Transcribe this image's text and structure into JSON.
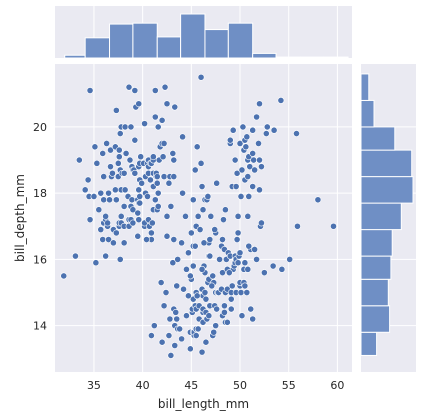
{
  "chart_data": {
    "type": "scatter",
    "kind": "jointplot",
    "xlabel": "bill_length_mm",
    "ylabel": "bill_depth_mm",
    "xlim": [
      31,
      61.5
    ],
    "ylim": [
      12.6,
      21.9
    ],
    "xticks": [
      35,
      40,
      45,
      50,
      55,
      60
    ],
    "yticks": [
      14,
      16,
      18,
      20
    ],
    "grid": true,
    "colors": {
      "marker": "#4c72b0",
      "bar": "#6f8fc5",
      "panel": "#eaeaf2",
      "grid": "#ffffff"
    },
    "points": [
      [
        31.9,
        15.5
      ],
      [
        33.1,
        16.1
      ],
      [
        33.5,
        19.0
      ],
      [
        34.1,
        18.1
      ],
      [
        34.4,
        18.4
      ],
      [
        34.5,
        17.9
      ],
      [
        34.6,
        21.1
      ],
      [
        34.6,
        17.2
      ],
      [
        35.0,
        17.9
      ],
      [
        35.1,
        19.4
      ],
      [
        35.2,
        15.9
      ],
      [
        35.3,
        18.9
      ],
      [
        35.5,
        17.5
      ],
      [
        35.7,
        16.9
      ],
      [
        35.7,
        18.0
      ],
      [
        35.9,
        16.6
      ],
      [
        35.9,
        19.2
      ],
      [
        36.0,
        17.1
      ],
      [
        36.0,
        17.8
      ],
      [
        36.0,
        18.5
      ],
      [
        36.2,
        16.1
      ],
      [
        36.2,
        17.2
      ],
      [
        36.2,
        17.3
      ],
      [
        36.3,
        19.5
      ],
      [
        36.4,
        17.0
      ],
      [
        36.4,
        17.1
      ],
      [
        36.5,
        16.6
      ],
      [
        36.5,
        18.0
      ],
      [
        36.6,
        17.8
      ],
      [
        36.7,
        18.8
      ],
      [
        36.7,
        19.3
      ],
      [
        36.8,
        18.5
      ],
      [
        36.9,
        18.6
      ],
      [
        37.0,
        16.5
      ],
      [
        37.0,
        16.9
      ],
      [
        37.2,
        18.1
      ],
      [
        37.2,
        19.4
      ],
      [
        37.3,
        16.8
      ],
      [
        37.3,
        17.8
      ],
      [
        37.3,
        20.5
      ],
      [
        37.5,
        18.5
      ],
      [
        37.5,
        18.9
      ],
      [
        37.6,
        17.0
      ],
      [
        37.6,
        17.1
      ],
      [
        37.6,
        19.1
      ],
      [
        37.6,
        19.3
      ],
      [
        37.7,
        16.0
      ],
      [
        37.7,
        18.7
      ],
      [
        37.7,
        19.8
      ],
      [
        37.8,
        17.1
      ],
      [
        37.8,
        17.3
      ],
      [
        37.8,
        18.1
      ],
      [
        37.8,
        20.0
      ],
      [
        37.9,
        18.6
      ],
      [
        38.1,
        16.5
      ],
      [
        38.1,
        17.0
      ],
      [
        38.1,
        17.6
      ],
      [
        38.1,
        18.6
      ],
      [
        38.2,
        18.1
      ],
      [
        38.2,
        20.0
      ],
      [
        38.3,
        19.2
      ],
      [
        38.5,
        17.9
      ],
      [
        38.6,
        17.0
      ],
      [
        38.6,
        17.2
      ],
      [
        38.6,
        21.2
      ],
      [
        38.7,
        19.0
      ],
      [
        38.8,
        17.2
      ],
      [
        38.8,
        17.6
      ],
      [
        38.8,
        20.0
      ],
      [
        38.9,
        17.8
      ],
      [
        38.9,
        18.8
      ],
      [
        39.0,
        17.1
      ],
      [
        39.0,
        17.5
      ],
      [
        39.0,
        18.7
      ],
      [
        39.1,
        18.7
      ],
      [
        39.2,
        18.6
      ],
      [
        39.2,
        19.6
      ],
      [
        39.2,
        21.1
      ],
      [
        39.3,
        20.6
      ],
      [
        39.5,
        16.7
      ],
      [
        39.5,
        17.4
      ],
      [
        39.5,
        17.8
      ],
      [
        39.6,
        17.2
      ],
      [
        39.6,
        17.7
      ],
      [
        39.6,
        18.1
      ],
      [
        39.6,
        18.8
      ],
      [
        39.6,
        20.7
      ],
      [
        39.7,
        17.7
      ],
      [
        39.7,
        17.9
      ],
      [
        39.7,
        18.4
      ],
      [
        39.7,
        18.9
      ],
      [
        39.8,
        19.1
      ],
      [
        39.9,
        18.3
      ],
      [
        40.1,
        18.9
      ],
      [
        40.2,
        17.0
      ],
      [
        40.2,
        17.1
      ],
      [
        40.2,
        20.1
      ],
      [
        40.3,
        18.0
      ],
      [
        40.3,
        18.5
      ],
      [
        40.5,
        17.9
      ],
      [
        40.5,
        18.9
      ],
      [
        40.6,
        17.2
      ],
      [
        40.6,
        18.6
      ],
      [
        40.6,
        18.8
      ],
      [
        40.6,
        19.0
      ],
      [
        40.7,
        17.0
      ],
      [
        40.8,
        18.4
      ],
      [
        40.8,
        18.9
      ],
      [
        40.9,
        16.6
      ],
      [
        40.9,
        16.8
      ],
      [
        40.9,
        18.9
      ],
      [
        41.0,
        17.1
      ],
      [
        41.1,
        17.5
      ],
      [
        41.1,
        18.2
      ],
      [
        41.1,
        18.6
      ],
      [
        41.1,
        19.0
      ],
      [
        41.1,
        19.1
      ],
      [
        41.3,
        17.8
      ],
      [
        41.3,
        20.3
      ],
      [
        41.3,
        21.1
      ],
      [
        41.4,
        18.5
      ],
      [
        41.4,
        18.6
      ],
      [
        41.5,
        17.5
      ],
      [
        41.5,
        18.3
      ],
      [
        41.5,
        18.5
      ],
      [
        41.6,
        17.6
      ],
      [
        41.6,
        18.0
      ],
      [
        41.6,
        20.0
      ],
      [
        41.7,
        19.0
      ],
      [
        41.8,
        19.4
      ],
      [
        42.0,
        19.5
      ],
      [
        42.0,
        20.2
      ],
      [
        42.1,
        19.1
      ],
      [
        42.2,
        18.5
      ],
      [
        42.2,
        19.5
      ],
      [
        42.3,
        21.2
      ],
      [
        42.5,
        16.7
      ],
      [
        42.5,
        17.3
      ],
      [
        42.5,
        20.7
      ],
      [
        42.7,
        18.3
      ],
      [
        42.8,
        18.5
      ],
      [
        42.9,
        17.6
      ],
      [
        43.1,
        19.2
      ],
      [
        43.2,
        16.6
      ],
      [
        43.2,
        18.5
      ],
      [
        43.2,
        19.0
      ],
      [
        43.3,
        20.6
      ],
      [
        44.1,
        18.0
      ],
      [
        44.1,
        19.7
      ],
      [
        45.2,
        17.8
      ],
      [
        45.4,
        18.7
      ],
      [
        45.5,
        17.0
      ],
      [
        45.6,
        19.4
      ],
      [
        45.7,
        17.3
      ],
      [
        46.0,
        18.9
      ],
      [
        46.0,
        21.5
      ],
      [
        46.1,
        18.2
      ],
      [
        46.2,
        17.5
      ],
      [
        46.4,
        17.8
      ],
      [
        46.6,
        17.8
      ],
      [
        46.7,
        17.9
      ],
      [
        46.8,
        16.5
      ],
      [
        46.9,
        16.6
      ],
      [
        47.0,
        17.3
      ],
      [
        47.5,
        16.8
      ],
      [
        47.6,
        18.3
      ],
      [
        48.1,
        16.4
      ],
      [
        48.5,
        17.5
      ],
      [
        49.0,
        19.5
      ],
      [
        49.0,
        19.6
      ],
      [
        49.2,
        18.2
      ],
      [
        49.3,
        19.9
      ],
      [
        49.5,
        19.0
      ],
      [
        49.6,
        18.2
      ],
      [
        49.7,
        18.6
      ],
      [
        49.8,
        17.3
      ],
      [
        50.0,
        19.5
      ],
      [
        50.1,
        17.9
      ],
      [
        50.2,
        18.7
      ],
      [
        50.3,
        20.0
      ],
      [
        50.4,
        19.3
      ],
      [
        50.5,
        18.4
      ],
      [
        50.5,
        19.6
      ],
      [
        50.6,
        19.4
      ],
      [
        50.7,
        19.7
      ],
      [
        50.8,
        18.5
      ],
      [
        50.8,
        19.0
      ],
      [
        50.9,
        17.9
      ],
      [
        50.9,
        19.1
      ],
      [
        51.0,
        18.8
      ],
      [
        51.3,
        18.2
      ],
      [
        51.3,
        19.2
      ],
      [
        51.3,
        19.9
      ],
      [
        51.4,
        19.0
      ],
      [
        51.5,
        18.7
      ],
      [
        51.7,
        20.3
      ],
      [
        51.9,
        19.5
      ],
      [
        52.0,
        18.1
      ],
      [
        52.0,
        19.0
      ],
      [
        52.0,
        20.7
      ],
      [
        52.2,
        18.8
      ],
      [
        52.7,
        19.8
      ],
      [
        52.8,
        20.0
      ],
      [
        53.5,
        19.9
      ],
      [
        54.2,
        20.8
      ],
      [
        55.8,
        19.8
      ],
      [
        58.0,
        17.8
      ],
      [
        40.9,
        13.7
      ],
      [
        42.0,
        13.5
      ],
      [
        42.7,
        13.7
      ],
      [
        42.8,
        14.2
      ],
      [
        42.9,
        13.1
      ],
      [
        43.2,
        14.5
      ],
      [
        43.3,
        13.4
      ],
      [
        43.3,
        14.0
      ],
      [
        43.4,
        14.4
      ],
      [
        43.5,
        14.2
      ],
      [
        43.5,
        15.2
      ],
      [
        43.6,
        13.9
      ],
      [
        43.8,
        13.9
      ],
      [
        44.0,
        13.6
      ],
      [
        44.4,
        17.3
      ],
      [
        44.5,
        14.3
      ],
      [
        44.5,
        15.7
      ],
      [
        44.9,
        13.3
      ],
      [
        44.9,
        13.8
      ],
      [
        45.0,
        15.4
      ],
      [
        45.1,
        14.4
      ],
      [
        45.1,
        14.5
      ],
      [
        45.2,
        13.8
      ],
      [
        45.2,
        14.8
      ],
      [
        45.2,
        15.8
      ],
      [
        45.2,
        16.4
      ],
      [
        45.3,
        13.7
      ],
      [
        45.3,
        13.8
      ],
      [
        45.4,
        14.6
      ],
      [
        45.5,
        13.7
      ],
      [
        45.5,
        13.9
      ],
      [
        45.5,
        14.5
      ],
      [
        45.5,
        15.0
      ],
      [
        45.7,
        13.9
      ],
      [
        45.8,
        14.2
      ],
      [
        45.8,
        14.6
      ],
      [
        46.1,
        13.2
      ],
      [
        46.1,
        15.1
      ],
      [
        46.2,
        14.1
      ],
      [
        46.2,
        14.4
      ],
      [
        46.2,
        14.5
      ],
      [
        46.2,
        14.9
      ],
      [
        46.3,
        15.8
      ],
      [
        46.4,
        15.0
      ],
      [
        46.4,
        15.6
      ],
      [
        46.5,
        13.5
      ],
      [
        46.5,
        14.4
      ],
      [
        46.5,
        14.8
      ],
      [
        46.6,
        14.2
      ],
      [
        46.7,
        15.3
      ],
      [
        46.8,
        14.3
      ],
      [
        46.8,
        15.4
      ],
      [
        46.8,
        16.1
      ],
      [
        46.9,
        14.6
      ],
      [
        47.2,
        13.7
      ],
      [
        47.2,
        15.5
      ],
      [
        47.3,
        13.8
      ],
      [
        47.3,
        15.3
      ],
      [
        47.4,
        14.6
      ],
      [
        47.5,
        14.0
      ],
      [
        47.5,
        15.0
      ],
      [
        47.6,
        14.5
      ],
      [
        47.7,
        15.0
      ],
      [
        47.8,
        15.0
      ],
      [
        48.1,
        15.1
      ],
      [
        48.2,
        14.3
      ],
      [
        48.2,
        15.6
      ],
      [
        48.4,
        14.4
      ],
      [
        48.4,
        14.6
      ],
      [
        48.4,
        16.3
      ],
      [
        48.5,
        14.1
      ],
      [
        48.5,
        15.0
      ],
      [
        48.6,
        16.0
      ],
      [
        48.7,
        14.1
      ],
      [
        48.7,
        15.1
      ],
      [
        48.7,
        15.7
      ],
      [
        48.8,
        16.2
      ],
      [
        49.0,
        16.1
      ],
      [
        49.1,
        14.5
      ],
      [
        49.1,
        14.8
      ],
      [
        49.1,
        15.0
      ],
      [
        49.2,
        15.2
      ],
      [
        49.3,
        15.7
      ],
      [
        49.4,
        15.8
      ],
      [
        49.5,
        15.9
      ],
      [
        49.5,
        16.1
      ],
      [
        49.6,
        15.0
      ],
      [
        49.6,
        16.0
      ],
      [
        49.8,
        15.9
      ],
      [
        49.8,
        16.8
      ],
      [
        49.9,
        16.1
      ],
      [
        50.0,
        15.2
      ],
      [
        50.0,
        15.3
      ],
      [
        50.0,
        16.2
      ],
      [
        50.1,
        15.0
      ],
      [
        50.2,
        14.3
      ],
      [
        50.4,
        15.3
      ],
      [
        50.4,
        15.7
      ],
      [
        50.5,
        15.2
      ],
      [
        50.5,
        15.9
      ],
      [
        50.7,
        15.0
      ],
      [
        50.8,
        15.7
      ],
      [
        50.8,
        17.3
      ],
      [
        51.1,
        14.5
      ],
      [
        51.1,
        16.3
      ],
      [
        51.3,
        14.2
      ],
      [
        51.5,
        16.3
      ],
      [
        52.1,
        17.0
      ],
      [
        52.2,
        17.1
      ],
      [
        52.5,
        15.6
      ],
      [
        53.4,
        15.8
      ],
      [
        54.3,
        15.7
      ],
      [
        55.1,
        16.0
      ],
      [
        55.9,
        17.0
      ],
      [
        59.6,
        17.0
      ],
      [
        40.4,
        16.6
      ],
      [
        41.9,
        15.3
      ],
      [
        42.4,
        15.0
      ],
      [
        43.1,
        15.9
      ],
      [
        43.6,
        16.0
      ],
      [
        44.0,
        16.5
      ],
      [
        44.7,
        16.2
      ],
      [
        45.0,
        16.8
      ],
      [
        45.4,
        16.4
      ],
      [
        45.9,
        16.9
      ],
      [
        46.3,
        16.5
      ],
      [
        46.9,
        16.1
      ],
      [
        47.4,
        16.9
      ],
      [
        48.2,
        16.6
      ],
      [
        48.3,
        17.2
      ],
      [
        49.7,
        16.6
      ],
      [
        50.9,
        16.4
      ],
      [
        51.7,
        16.0
      ],
      [
        41.2,
        14.0
      ],
      [
        42.2,
        14.6
      ],
      [
        44.2,
        15.1
      ],
      [
        44.7,
        14.9
      ],
      [
        45.6,
        14.9
      ],
      [
        46.1,
        15.7
      ],
      [
        47.1,
        15.2
      ],
      [
        47.9,
        16.0
      ],
      [
        48.9,
        15.6
      ],
      [
        44.9,
        15.5
      ]
    ],
    "hist_x": {
      "bins": [
        [
          32,
          34.1
        ],
        [
          34.1,
          36.6
        ],
        [
          36.6,
          39.0
        ],
        [
          39.0,
          41.5
        ],
        [
          41.5,
          43.9
        ],
        [
          43.9,
          46.4
        ],
        [
          46.4,
          48.8
        ],
        [
          48.8,
          51.3
        ],
        [
          51.3,
          53.7
        ],
        [
          53.7,
          56.2
        ],
        [
          56.2,
          58.6
        ],
        [
          58.6,
          61.1
        ]
      ],
      "counts": [
        3,
        22,
        37,
        38,
        23,
        48,
        31,
        38,
        5,
        1,
        1,
        1
      ]
    },
    "hist_y": {
      "bins": [
        [
          13.1,
          13.8
        ],
        [
          13.8,
          14.6
        ],
        [
          14.6,
          15.4
        ],
        [
          15.4,
          16.1
        ],
        [
          16.1,
          16.9
        ],
        [
          16.9,
          17.7
        ],
        [
          17.7,
          18.5
        ],
        [
          18.5,
          19.3
        ],
        [
          19.3,
          20.0
        ],
        [
          20.0,
          20.8
        ],
        [
          20.8,
          21.6
        ]
      ],
      "counts": [
        12,
        22,
        21,
        23,
        24,
        31,
        40,
        39,
        26,
        10,
        6
      ]
    }
  }
}
